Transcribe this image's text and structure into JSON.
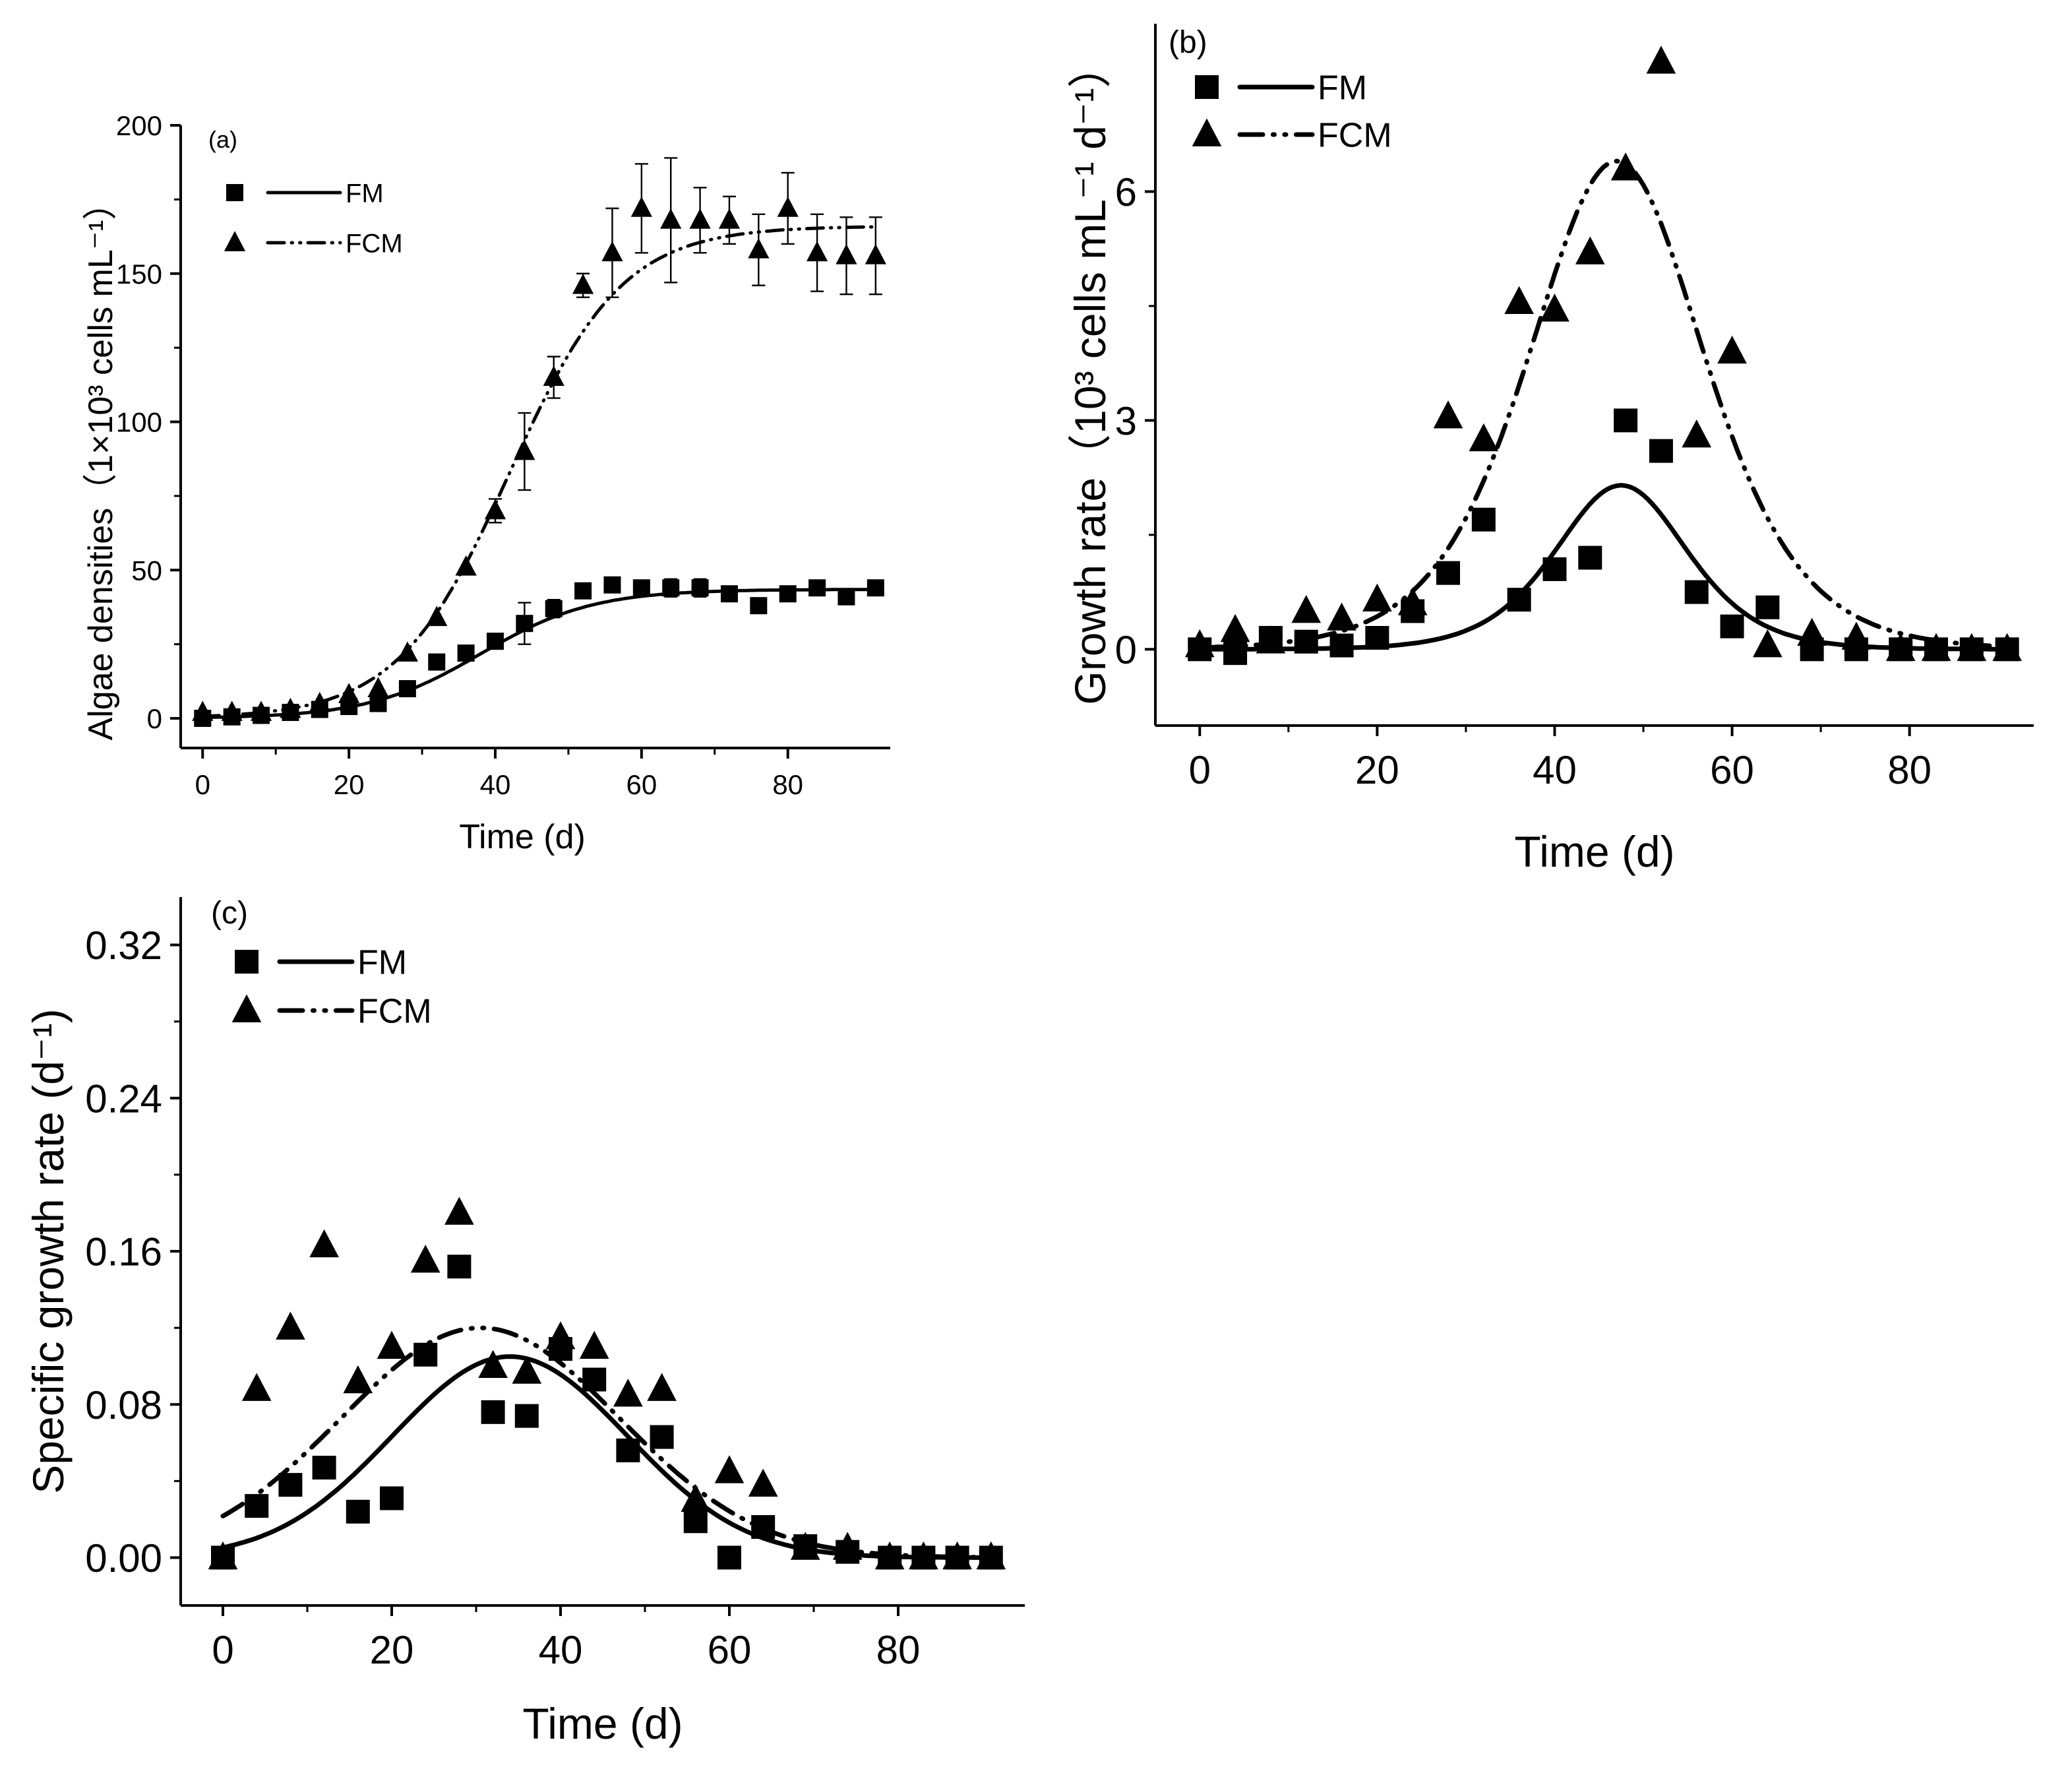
{
  "colors": {
    "ink": "#000000",
    "background": "#ffffff"
  },
  "chart_data": [
    {
      "id": "a",
      "type": "scatter",
      "panel_label": "(a)",
      "xlabel": "Time (d)",
      "ylabel": "Algae densities（1×10³ cells mL⁻¹）",
      "xlim": [
        -3,
        94
      ],
      "ylim": [
        -10,
        200
      ],
      "xticks": [
        0,
        20,
        40,
        60,
        80
      ],
      "yticks": [
        0,
        50,
        100,
        150,
        200
      ],
      "legend_position": "top-left",
      "series": [
        {
          "name": "FM",
          "marker": "square",
          "line": "solid",
          "x": [
            0,
            4,
            8,
            12,
            16,
            20,
            24,
            28,
            32,
            36,
            40,
            44,
            48,
            52,
            56,
            60,
            64,
            68,
            72,
            76,
            80,
            84,
            88,
            92
          ],
          "y": [
            0,
            0.5,
            1,
            2,
            3,
            4,
            5,
            10,
            19,
            22,
            26,
            32,
            37,
            43,
            45,
            44,
            44,
            44,
            42,
            38,
            42,
            44,
            41,
            44
          ],
          "err": [
            0,
            0,
            0,
            0,
            0,
            0,
            0,
            0,
            0,
            0,
            0,
            7,
            3,
            0,
            0,
            0,
            3,
            3,
            0,
            0,
            0,
            0,
            0,
            0
          ],
          "fit": {
            "model": "logistic",
            "K": 43.5,
            "r": 0.13,
            "t0": 38
          }
        },
        {
          "name": "FCM",
          "marker": "triangle",
          "line": "dash-dot-dot",
          "x": [
            0,
            4,
            8,
            12,
            16,
            20,
            24,
            28,
            32,
            36,
            40,
            44,
            48,
            52,
            56,
            60,
            64,
            68,
            72,
            76,
            80,
            84,
            88,
            92
          ],
          "y": [
            2,
            2,
            2,
            3,
            5,
            8,
            10,
            22,
            34,
            51,
            70,
            90,
            115,
            146,
            157,
            172,
            168,
            168,
            168,
            158,
            172,
            157,
            156,
            156
          ],
          "err": [
            0,
            0,
            0,
            0,
            0,
            0,
            0,
            0,
            0,
            0,
            4,
            13,
            7,
            4,
            15,
            15,
            21,
            11,
            8,
            12,
            12,
            13,
            13,
            13
          ],
          "fit": {
            "model": "logistic",
            "K": 166,
            "r": 0.13,
            "t0": 42
          }
        }
      ]
    },
    {
      "id": "b",
      "type": "scatter",
      "panel_label": "(b)",
      "xlabel": "Time (d)",
      "ylabel": "Growth rate（10³ cells mL⁻¹ d⁻¹）",
      "xlim": [
        -5,
        94
      ],
      "ylim": [
        -1,
        8.2
      ],
      "xticks": [
        0,
        20,
        40,
        60,
        80
      ],
      "yticks": [
        0,
        3,
        6
      ],
      "legend_position": "top-left",
      "series": [
        {
          "name": "FM",
          "marker": "square",
          "line": "solid",
          "x": [
            0,
            4,
            8,
            12,
            16,
            20,
            24,
            28,
            32,
            36,
            40,
            44,
            48,
            52,
            56,
            60,
            64,
            69,
            74,
            79,
            83,
            87,
            91
          ],
          "y": [
            0,
            -0.05,
            0.15,
            0.1,
            0.05,
            0.15,
            0.5,
            1.0,
            1.7,
            0.65,
            1.05,
            1.2,
            3.0,
            2.6,
            0.75,
            0.3,
            0.55,
            0,
            0,
            0,
            0,
            0,
            0
          ],
          "fit": {
            "model": "peak",
            "peak": 2.15,
            "r": 0.2,
            "t0": 47.5
          }
        },
        {
          "name": "FCM",
          "marker": "triangle",
          "line": "dash-dot-dot",
          "x": [
            0,
            4,
            8,
            12,
            16,
            20,
            24,
            28,
            32,
            36,
            40,
            44,
            48,
            52,
            56,
            60,
            64,
            69,
            74,
            79,
            83,
            87,
            91
          ],
          "y": [
            0.05,
            0.25,
            0.1,
            0.5,
            0.4,
            0.65,
            0.6,
            3.05,
            2.75,
            4.55,
            4.45,
            5.2,
            6.3,
            7.7,
            2.8,
            3.9,
            0.05,
            0.2,
            0.15,
            0,
            0,
            0,
            0
          ],
          "fit": {
            "model": "peak",
            "peak": 6.4,
            "r": 0.15,
            "t0": 47
          }
        }
      ]
    },
    {
      "id": "c",
      "type": "scatter",
      "panel_label": "(c)",
      "xlabel": "Time (d)",
      "ylabel": "Specific growth rate (d⁻¹)",
      "xlim": [
        -5,
        95
      ],
      "ylim": [
        -0.025,
        0.345
      ],
      "xticks": [
        0,
        20,
        40,
        60,
        80
      ],
      "yticks": [
        0.0,
        0.08,
        0.16,
        0.24,
        0.32
      ],
      "ytick_labels": [
        "0.00",
        "0.08",
        "0.16",
        "0.24",
        "0.32"
      ],
      "legend_position": "top-left",
      "series": [
        {
          "name": "FM",
          "marker": "square",
          "line": "solid",
          "x": [
            0,
            4,
            8,
            12,
            16,
            20,
            24,
            28,
            32,
            36,
            40,
            44,
            48,
            52,
            56,
            60,
            64,
            69,
            74,
            79,
            83,
            87,
            91
          ],
          "y": [
            0,
            0.027,
            0.038,
            0.047,
            0.024,
            0.031,
            0.106,
            0.152,
            0.076,
            0.074,
            0.109,
            0.093,
            0.056,
            0.063,
            0.019,
            0,
            0.016,
            0.006,
            0.003,
            0,
            0,
            0,
            0
          ],
          "fit": {
            "model": "gauss",
            "peak": 0.105,
            "mu": 34,
            "sigma": 13.9
          }
        },
        {
          "name": "FCM",
          "marker": "triangle",
          "line": "dash-dot-dot",
          "x": [
            0,
            4,
            8,
            12,
            16,
            20,
            24,
            28,
            32,
            36,
            40,
            44,
            48,
            52,
            56,
            60,
            64,
            69,
            74,
            79,
            83,
            87,
            91
          ],
          "y": [
            0,
            0.088,
            0.12,
            0.163,
            0.092,
            0.11,
            0.155,
            0.18,
            0.1,
            0.097,
            0.115,
            0.11,
            0.085,
            0.088,
            0.03,
            0.045,
            0.038,
            0.005,
            0.005,
            0,
            0,
            0,
            0
          ],
          "fit": {
            "model": "gauss",
            "peak": 0.12,
            "mu": 30.5,
            "sigma": 16.5
          }
        }
      ]
    }
  ]
}
